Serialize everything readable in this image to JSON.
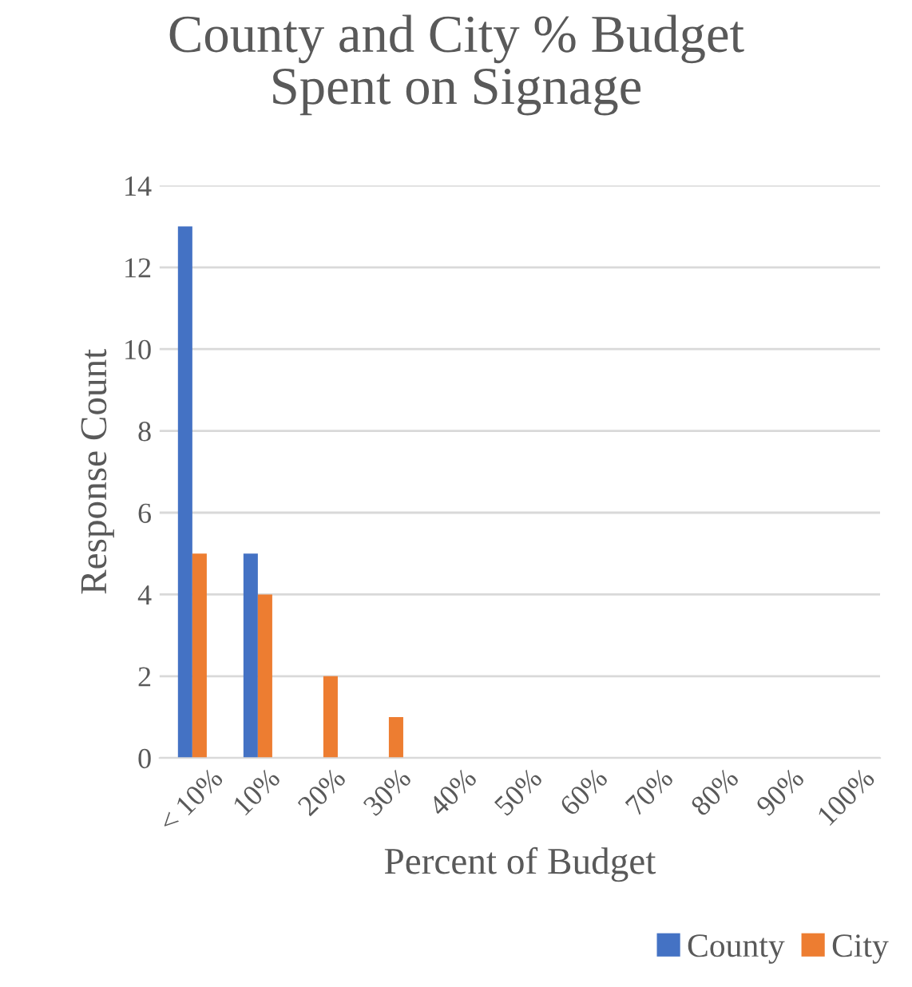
{
  "chart_data": {
    "type": "bar",
    "title": "County and City % Budget\nSpent on Signage",
    "xlabel": "Percent of Budget",
    "ylabel": "Response Count",
    "categories": [
      "< 10%",
      "10%",
      "20%",
      "30%",
      "40%",
      "50%",
      "60%",
      "70%",
      "80%",
      "90%",
      "100%"
    ],
    "series": [
      {
        "name": "County",
        "color": "#4472c4",
        "values": [
          13,
          5,
          0,
          0,
          0,
          0,
          0,
          0,
          0,
          0,
          0
        ]
      },
      {
        "name": "City",
        "color": "#ed7d31",
        "values": [
          5,
          4,
          2,
          1,
          0,
          0,
          0,
          0,
          0,
          0,
          0
        ]
      }
    ],
    "ylim": [
      0,
      14
    ],
    "yticks": [
      0,
      2,
      4,
      6,
      8,
      10,
      12,
      14
    ],
    "grid": "y",
    "legend": "bottom right"
  }
}
